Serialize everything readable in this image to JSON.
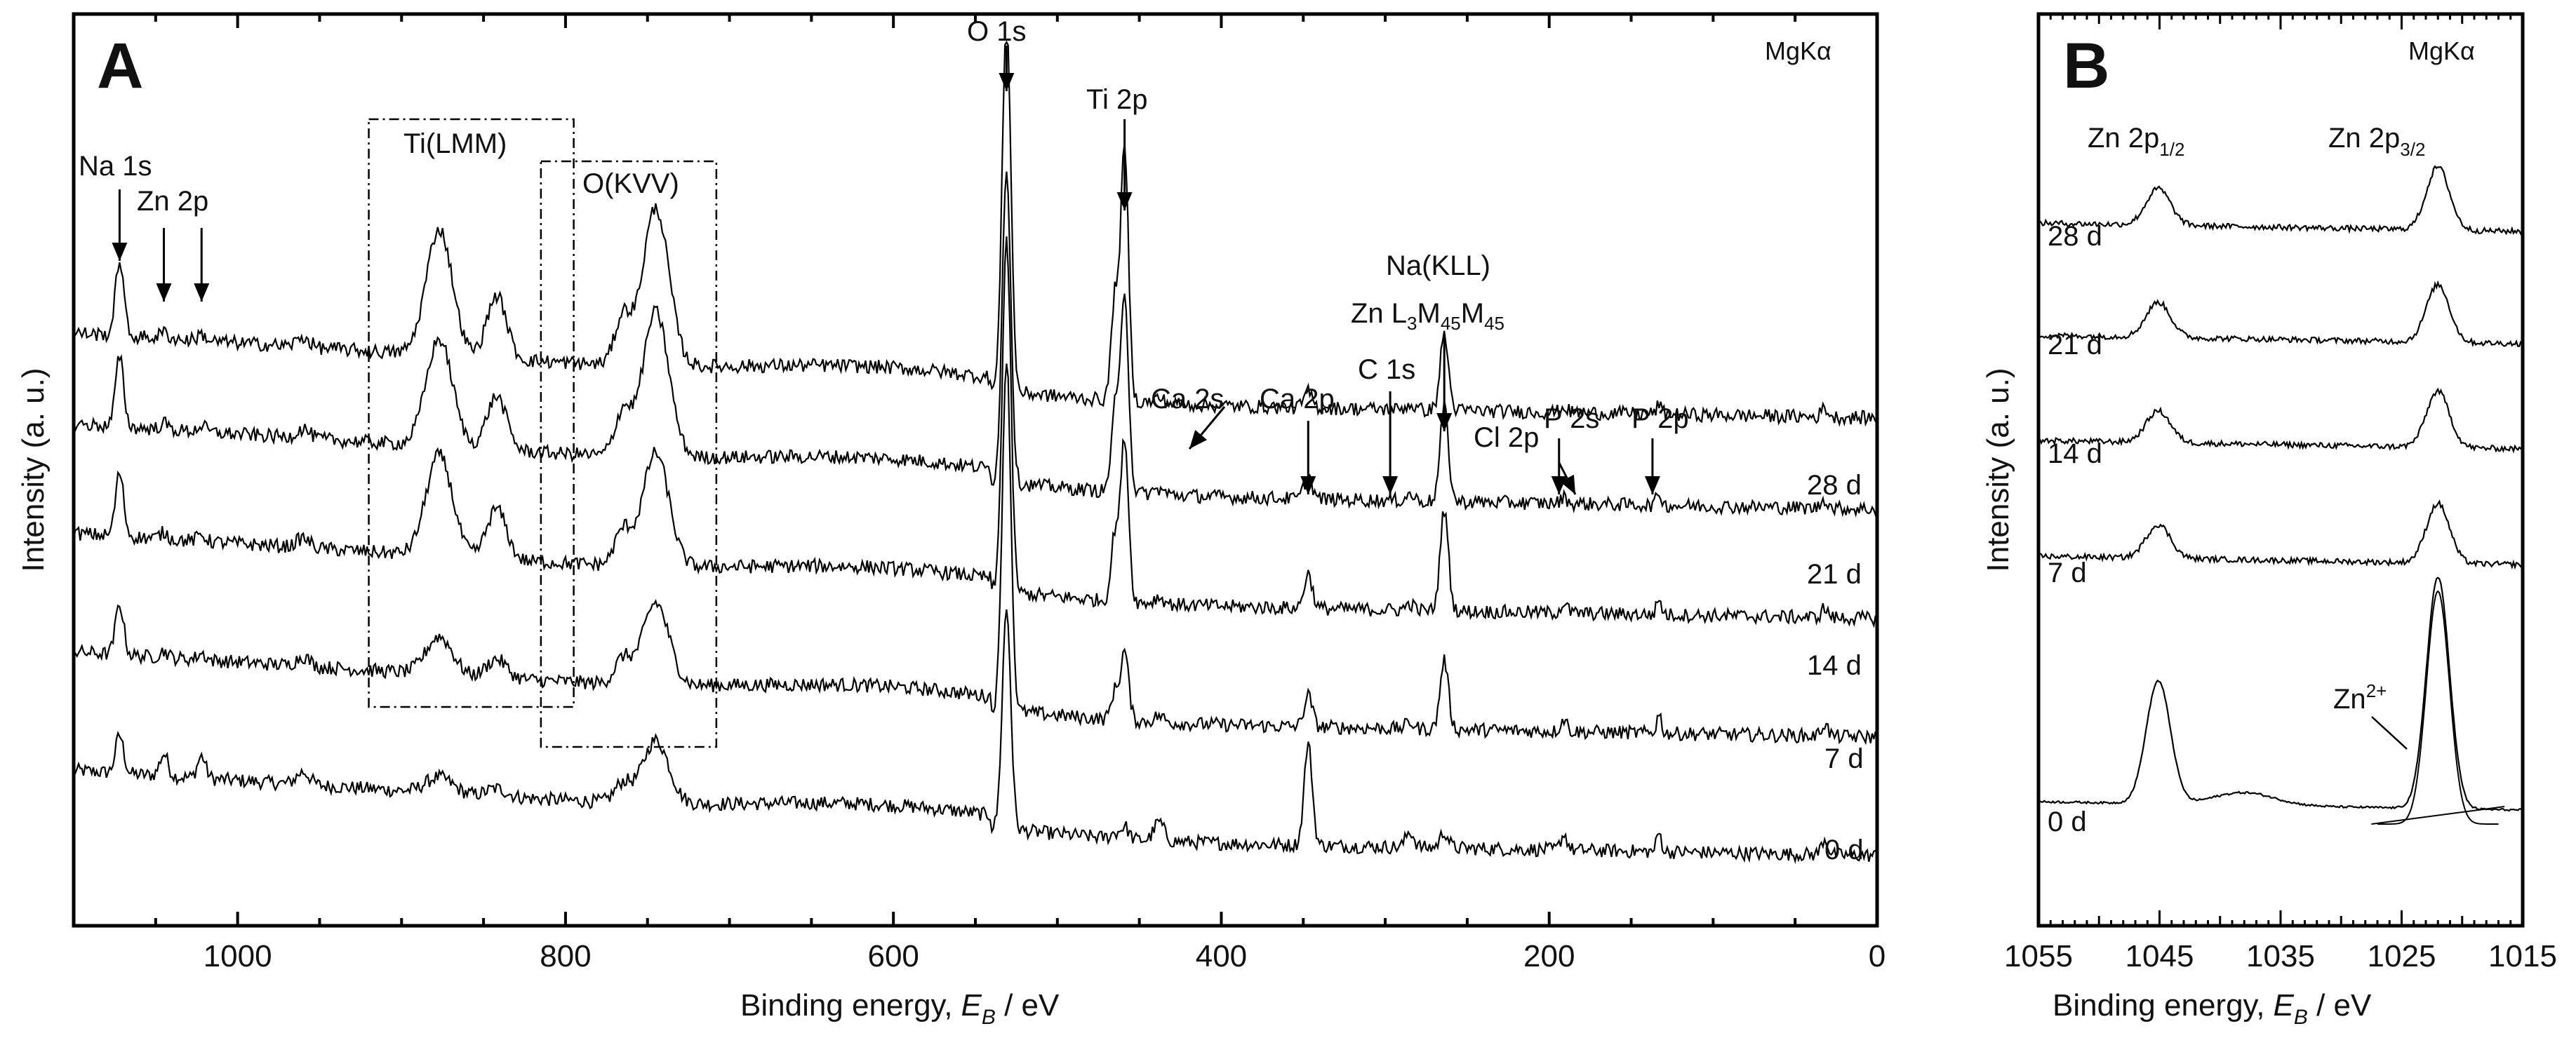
{
  "chart_data": [
    {
      "panel": "A",
      "type": "line",
      "source_label": "MgKα",
      "xlabel": "Binding energy,",
      "xlabel_symbol": "E",
      "xlabel_sub": "B",
      "xlabel_unit": " / eV",
      "ylabel": "Intensity (a. u.)",
      "xlim": [
        1100,
        0
      ],
      "x_ticks": [
        1000,
        800,
        600,
        400,
        200,
        0
      ],
      "series": [
        {
          "name": "0 d",
          "baseline": 0.93
        },
        {
          "name": "7 d",
          "baseline": 0.8
        },
        {
          "name": "14 d",
          "baseline": 0.67
        },
        {
          "name": "21 d",
          "baseline": 0.55
        },
        {
          "name": "28 d",
          "baseline": 0.45
        }
      ],
      "peaks": [
        {
          "label": "Na 1s",
          "energy": 1072
        },
        {
          "label": "Zn 2p",
          "energy": 1045
        },
        {
          "label": "Zn 2p (3/2)",
          "energy": 1022
        },
        {
          "label": "Ti(LMM)",
          "energy": 877
        },
        {
          "label": "O(KVV)",
          "energy": 745
        },
        {
          "label": "O 1s",
          "energy": 531
        },
        {
          "label": "Ti 2p",
          "energy": 459
        },
        {
          "label": "Ca 2s",
          "energy": 438
        },
        {
          "label": "Ca 2p",
          "energy": 347
        },
        {
          "label": "C 1s",
          "energy": 285
        },
        {
          "label": "Na(KLL) / Zn L3M45M45",
          "energy": 264
        },
        {
          "label": "Cl 2p",
          "energy": 199
        },
        {
          "label": "P 2s",
          "energy": 191
        },
        {
          "label": "P 2p",
          "energy": 133
        }
      ],
      "annotation_text": {
        "o1s": "O 1s",
        "ti2p": "Ti 2p",
        "na1s": "Na 1s",
        "zn2p": "Zn 2p",
        "tilmm": "Ti(LMM)",
        "okvv": "O(KVV)",
        "nakll": "Na(KLL)",
        "zn_auger_a": "Zn L",
        "zn_auger_s1": "3",
        "zn_auger_b": "M",
        "zn_auger_s2": "45",
        "zn_auger_c": "M",
        "zn_auger_s3": "45",
        "ca2s": "Ca 2s",
        "ca2p": "Ca 2p",
        "c1s": "C 1s",
        "cl2p": "Cl 2p",
        "p2s": "P 2s",
        "p2p": "P 2p"
      },
      "boxes": [
        {
          "label": "Ti(LMM)",
          "x_range": [
            920,
            795
          ]
        },
        {
          "label": "O(KVV)",
          "x_range": [
            815,
            708
          ]
        }
      ]
    },
    {
      "panel": "B",
      "type": "line",
      "source_label": "MgKα",
      "xlabel": "Binding energy,",
      "xlabel_symbol": "E",
      "xlabel_sub": "B",
      "xlabel_unit": " / eV",
      "ylabel": "Intensity (a. u.)",
      "xlim": [
        1055,
        1015
      ],
      "x_ticks": [
        1055,
        1045,
        1035,
        1025,
        1015
      ],
      "peak_labels": {
        "p12_main": "Zn 2p",
        "p12_sub": "1/2",
        "p32_main": "Zn 2p",
        "p32_sub": "3/2",
        "zn2plus_main": "Zn",
        "zn2plus_sup": "2+"
      },
      "peak_positions": {
        "Zn 2p1/2": 1045.1,
        "Zn 2p3/2": 1022.0,
        "Zn2+": 1022.0
      },
      "series": [
        {
          "name": "0 d"
        },
        {
          "name": "7 d"
        },
        {
          "name": "14 d"
        },
        {
          "name": "21 d"
        },
        {
          "name": "28 d"
        }
      ]
    }
  ]
}
